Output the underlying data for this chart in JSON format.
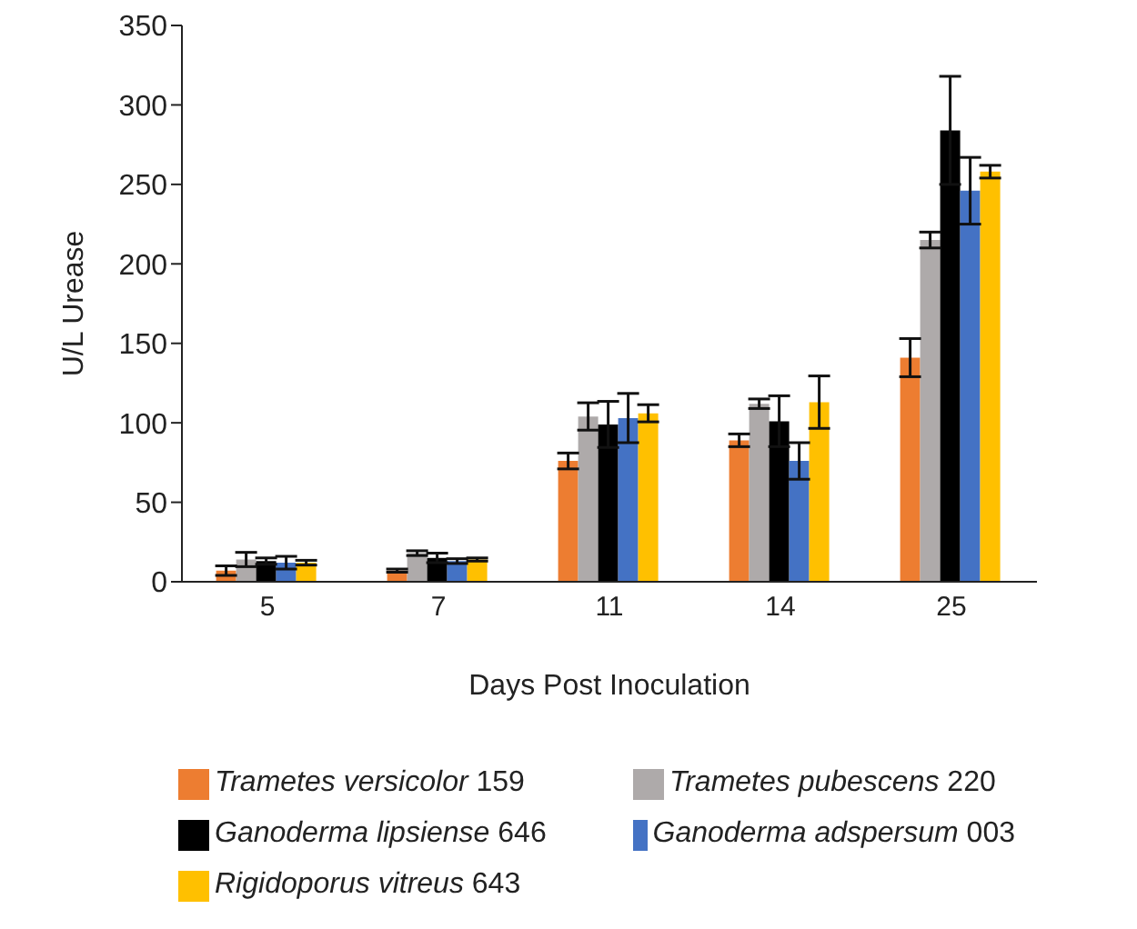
{
  "chart_data": {
    "type": "bar",
    "xlabel": "Days Post Inoculation",
    "ylabel": "U/L Urease",
    "categories": [
      "5",
      "7",
      "11",
      "14",
      "25"
    ],
    "series": [
      {
        "name": "Trametes versicolor 159",
        "color": "#ed7d31",
        "values": [
          7,
          7,
          76,
          89,
          141
        ],
        "errors": [
          3,
          1,
          5,
          4,
          12
        ]
      },
      {
        "name": "Trametes pubescens 220",
        "color": "#aeaaaa",
        "values": [
          14,
          18,
          104,
          112,
          215
        ],
        "errors": [
          4.5,
          1.5,
          8.6,
          3,
          5
        ]
      },
      {
        "name": "Ganoderma lipsiense 646",
        "color": "#000000",
        "values": [
          13,
          15,
          99,
          101,
          284
        ],
        "errors": [
          2,
          3,
          14.5,
          16,
          34
        ]
      },
      {
        "name": "Ganoderma adspersum 003",
        "color": "#4472c4",
        "values": [
          12,
          13,
          103,
          76,
          246
        ],
        "errors": [
          4,
          1.5,
          15.5,
          11.5,
          21
        ]
      },
      {
        "name": "Rigidoporus vitreus 643",
        "color": "#ffc000",
        "values": [
          12,
          14,
          106,
          113,
          258
        ],
        "errors": [
          1.5,
          1,
          5.4,
          16.5,
          4
        ]
      }
    ],
    "ylim": [
      0,
      350
    ],
    "yticks": [
      0,
      50,
      100,
      150,
      200,
      250,
      300,
      350
    ],
    "legend": "bottom"
  }
}
